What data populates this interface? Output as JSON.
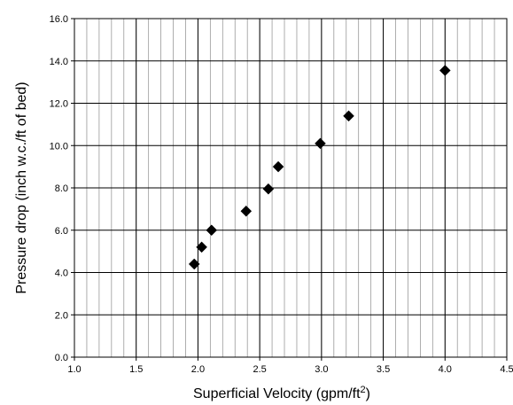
{
  "chart_data": {
    "type": "scatter",
    "title": "",
    "xlabel": "Superficial Velocity (gpm/ft",
    "xlabel_superscript": "2",
    "xlabel_suffix": ")",
    "ylabel": "Pressure drop (inch w.c./ft of bed)",
    "xlim": [
      1.0,
      4.5
    ],
    "ylim": [
      0.0,
      16.0
    ],
    "x_ticks": [
      "1.0",
      "1.5",
      "2.0",
      "2.5",
      "3.0",
      "3.5",
      "4.0",
      "4.5"
    ],
    "y_ticks": [
      "0.0",
      "2.0",
      "4.0",
      "6.0",
      "8.0",
      "10.0",
      "12.0",
      "14.0",
      "16.0"
    ],
    "x_minor_step": 0.1,
    "y_minor_step": 1.0,
    "grid": true,
    "marker": "diamond",
    "marker_color": "#000000",
    "points": [
      {
        "x": 1.97,
        "y": 4.4
      },
      {
        "x": 2.03,
        "y": 5.2
      },
      {
        "x": 2.11,
        "y": 6.0
      },
      {
        "x": 2.39,
        "y": 6.9
      },
      {
        "x": 2.57,
        "y": 7.95
      },
      {
        "x": 2.65,
        "y": 9.0
      },
      {
        "x": 2.99,
        "y": 10.1
      },
      {
        "x": 3.22,
        "y": 11.4
      },
      {
        "x": 4.0,
        "y": 13.55
      }
    ]
  }
}
